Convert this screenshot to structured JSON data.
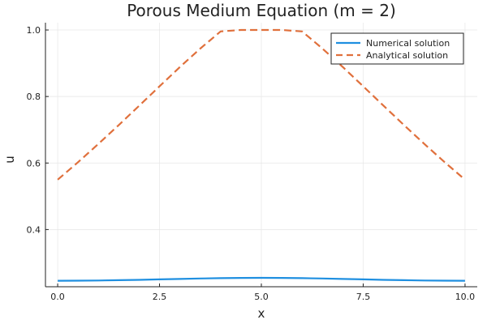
{
  "chart_data": {
    "type": "line",
    "title": "Porous Medium Equation (m = 2)",
    "xlabel": "x",
    "ylabel": "u",
    "xlim": [
      -0.3,
      10.3
    ],
    "ylim": [
      0.228,
      1.022
    ],
    "xticks": [
      0.0,
      2.5,
      5.0,
      7.5,
      10.0
    ],
    "xtick_labels": [
      "0.0",
      "2.5",
      "5.0",
      "7.5",
      "10.0"
    ],
    "yticks": [
      0.4,
      0.6,
      0.8,
      1.0
    ],
    "ytick_labels": [
      "0.4",
      "0.6",
      "0.8",
      "1.0"
    ],
    "grid": true,
    "legend_position": "top-right",
    "x": [
      0.0,
      0.5,
      1.0,
      1.5,
      2.0,
      2.5,
      3.0,
      3.5,
      4.0,
      4.5,
      5.0,
      5.5,
      6.0,
      6.5,
      7.0,
      7.5,
      8.0,
      8.5,
      9.0,
      9.5,
      10.0
    ],
    "series": [
      {
        "name": "Numerical solution",
        "color": "#1f8fe0",
        "dash": "solid",
        "values": [
          0.246,
          0.2462,
          0.2468,
          0.2477,
          0.2488,
          0.2501,
          0.2515,
          0.2528,
          0.2539,
          0.2546,
          0.2549,
          0.2546,
          0.2539,
          0.2528,
          0.2515,
          0.2501,
          0.2488,
          0.2477,
          0.2468,
          0.2462,
          0.246
        ]
      },
      {
        "name": "Analytical solution",
        "color": "#e0703c",
        "dash": "dashed",
        "values": [
          0.55,
          0.6025,
          0.6574,
          0.7142,
          0.7722,
          0.8306,
          0.8885,
          0.9441,
          0.9958,
          1.0,
          1.0,
          1.0,
          0.9958,
          0.9441,
          0.8885,
          0.8306,
          0.7722,
          0.7142,
          0.6574,
          0.6025,
          0.55
        ]
      }
    ]
  }
}
